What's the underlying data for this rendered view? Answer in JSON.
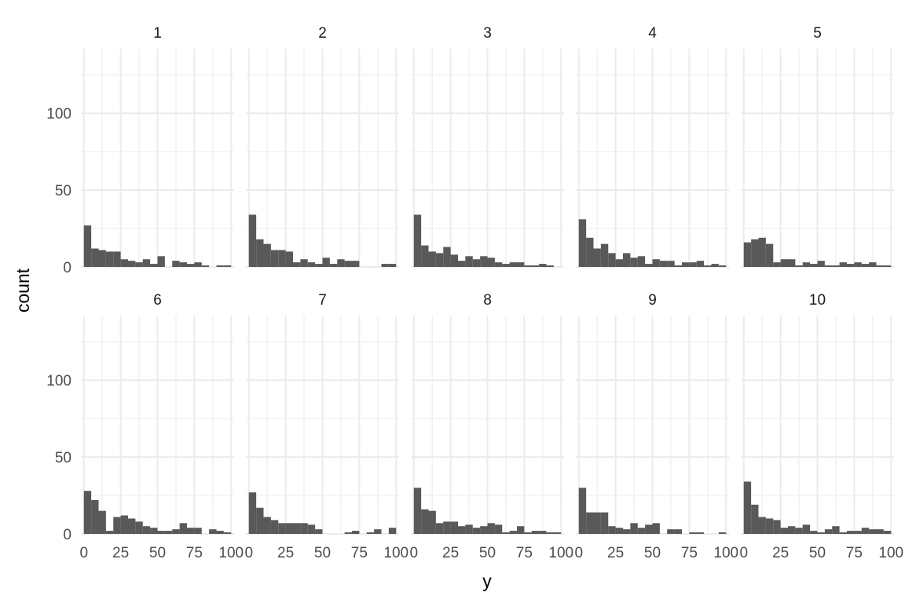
{
  "chart_data": {
    "type": "bar",
    "subtype": "faceted histogram",
    "xlabel": "y",
    "ylabel": "count",
    "xlim": [
      -2,
      102
    ],
    "ylim": [
      0,
      142
    ],
    "x_ticks": [
      0,
      25,
      50,
      75,
      100
    ],
    "y_ticks": [
      0,
      50,
      100
    ],
    "bin_width": 5,
    "bin_starts": [
      0,
      5,
      10,
      15,
      20,
      25,
      30,
      35,
      40,
      45,
      50,
      55,
      60,
      65,
      70,
      75,
      80,
      85,
      90,
      95
    ],
    "bar_color": "#595959",
    "grid": true,
    "grid_color": "#ebebeb",
    "facet_layout": {
      "rows": 2,
      "cols": 5
    },
    "panels": [
      {
        "label": "1",
        "counts": [
          27,
          12,
          11,
          10,
          10,
          5,
          4,
          3,
          5,
          2,
          7,
          0,
          4,
          3,
          2,
          3,
          1,
          0,
          1,
          1
        ]
      },
      {
        "label": "2",
        "counts": [
          34,
          18,
          15,
          11,
          11,
          10,
          3,
          5,
          3,
          2,
          6,
          2,
          5,
          4,
          4,
          0,
          0,
          0,
          2,
          2
        ]
      },
      {
        "label": "3",
        "counts": [
          34,
          14,
          10,
          9,
          13,
          8,
          4,
          7,
          5,
          7,
          6,
          3,
          2,
          3,
          3,
          1,
          1,
          2,
          1,
          0
        ]
      },
      {
        "label": "4",
        "counts": [
          31,
          19,
          12,
          15,
          9,
          5,
          9,
          6,
          7,
          2,
          5,
          4,
          4,
          1,
          3,
          3,
          4,
          1,
          2,
          1
        ]
      },
      {
        "label": "5",
        "counts": [
          16,
          18,
          19,
          15,
          3,
          5,
          5,
          1,
          3,
          2,
          4,
          1,
          1,
          3,
          2,
          3,
          2,
          3,
          1,
          1
        ]
      },
      {
        "label": "6",
        "counts": [
          28,
          22,
          15,
          2,
          11,
          12,
          10,
          8,
          5,
          4,
          2,
          2,
          3,
          7,
          4,
          4,
          0,
          3,
          2,
          1
        ]
      },
      {
        "label": "7",
        "counts": [
          27,
          17,
          11,
          9,
          7,
          7,
          7,
          7,
          6,
          3,
          0,
          0,
          0,
          1,
          2,
          0,
          1,
          3,
          0,
          4
        ]
      },
      {
        "label": "8",
        "counts": [
          30,
          16,
          15,
          7,
          8,
          8,
          5,
          6,
          4,
          5,
          7,
          6,
          1,
          2,
          5,
          1,
          2,
          2,
          1,
          1
        ]
      },
      {
        "label": "9",
        "counts": [
          30,
          14,
          14,
          14,
          5,
          4,
          3,
          7,
          4,
          6,
          7,
          0,
          3,
          3,
          0,
          1,
          1,
          0,
          0,
          1
        ]
      },
      {
        "label": "10",
        "counts": [
          34,
          19,
          11,
          10,
          9,
          4,
          5,
          4,
          6,
          2,
          1,
          3,
          5,
          1,
          2,
          2,
          4,
          3,
          3,
          2
        ]
      }
    ]
  }
}
